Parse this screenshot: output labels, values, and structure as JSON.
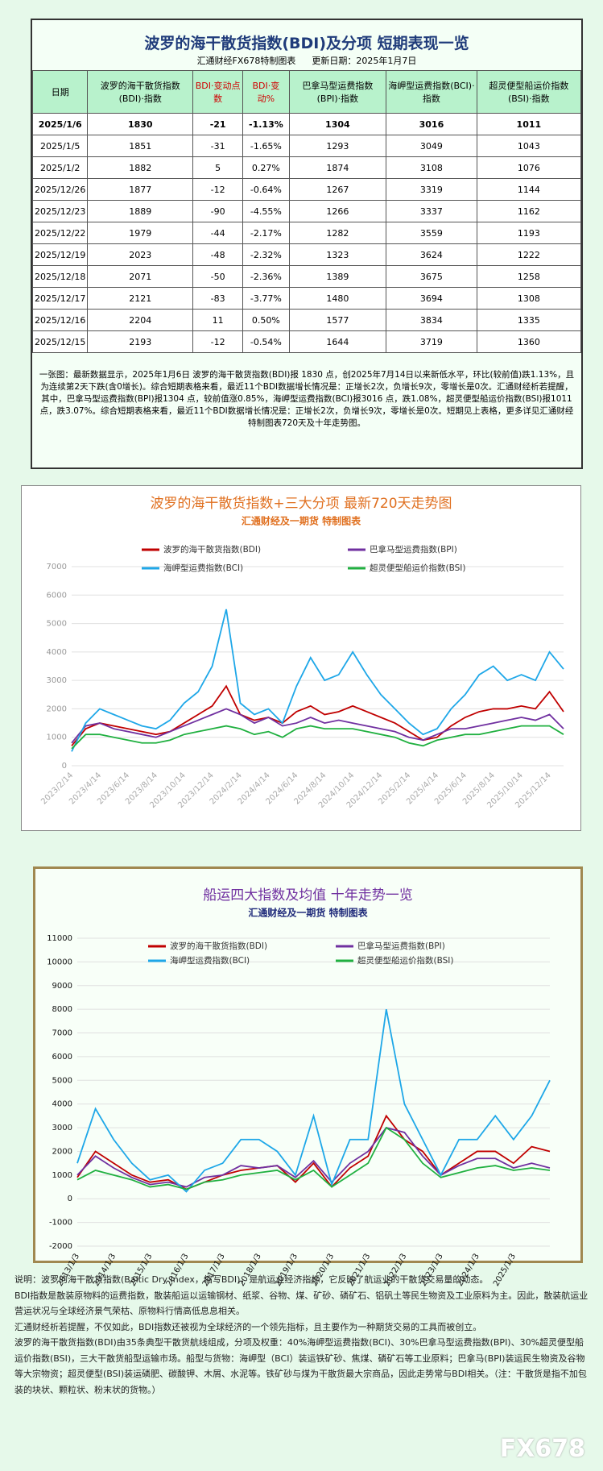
{
  "header": {
    "title": "波罗的海干散货指数(BDI)及分项  短期表现一览",
    "subtitle": "汇通财经FX678特制图表",
    "updated": "更新日期：2025年1月7日"
  },
  "table": {
    "header": [
      "日期",
      "波罗的海干散货指数(BDI)·指数",
      "BDI·变动点数",
      "BDI·变动%",
      "巴拿马型运费指数(BPI)·指数",
      "海岬型运费指数(BCI)·指数",
      "超灵便型船运价指数(BSI)·指数"
    ],
    "rows": [
      [
        "2025/1/6",
        "1830",
        "-21",
        "-1.13%",
        "1304",
        "3016",
        "1011"
      ],
      [
        "2025/1/5",
        "1851",
        "-31",
        "-1.65%",
        "1293",
        "3049",
        "1043"
      ],
      [
        "2025/1/2",
        "1882",
        "5",
        "0.27%",
        "1874",
        "3108",
        "1076"
      ],
      [
        "2025/12/26",
        "1877",
        "-12",
        "-0.64%",
        "1267",
        "3319",
        "1144"
      ],
      [
        "2025/12/23",
        "1889",
        "-90",
        "-4.55%",
        "1266",
        "3337",
        "1162"
      ],
      [
        "2025/12/22",
        "1979",
        "-44",
        "-2.17%",
        "1282",
        "3559",
        "1193"
      ],
      [
        "2025/12/19",
        "2023",
        "-48",
        "-2.32%",
        "1323",
        "3624",
        "1222"
      ],
      [
        "2025/12/18",
        "2071",
        "-50",
        "-2.36%",
        "1389",
        "3675",
        "1258"
      ],
      [
        "2025/12/17",
        "2121",
        "-83",
        "-3.77%",
        "1480",
        "3694",
        "1308"
      ],
      [
        "2025/12/16",
        "2204",
        "11",
        "0.50%",
        "1577",
        "3834",
        "1335"
      ],
      [
        "2025/12/15",
        "2193",
        "-12",
        "-0.54%",
        "1644",
        "3719",
        "1360"
      ]
    ]
  },
  "summary": "一张图：最新数据显示，2025年1月6日 波罗的海干散货指数(BDI)报 1830 点，创2025年7月14日以来新低水平，环比(较前值)跌1.13%，且为连续第2天下跌(含0增长)。综合短期表格来看，最近11个BDI数据增长情况是：正增长2次，负增长9次，零增长是0次。汇通财经析若提醒，其中，巴拿马型运费指数(BPI)报1304 点，较前值涨0.85%，海岬型运费指数(BCI)报3016 点，跌1.08%，超灵便型船运价指数(BSI)报1011 点，跌3.07%。综合短期表格来看，最近11个BDI数据增长情况是：正增长2次，负增长9次，零增长是0次。短期见上表格，更多详见汇通财经特制图表720天及十年走势图。",
  "chart_data": [
    {
      "type": "line",
      "title": "波罗的海干散货指数+三大分项  最新720天走势图",
      "subtitle": "汇通财经及一期货  特制图表",
      "categories": [
        "2023/2/14",
        null,
        "2023/4/14",
        null,
        "2023/6/14",
        null,
        "2023/8/14",
        null,
        "2023/10/14",
        null,
        "2023/12/14",
        null,
        "2024/2/14",
        null,
        "2024/4/14",
        null,
        "2024/6/14",
        null,
        "2024/8/14",
        null,
        "2024/10/14",
        null,
        "2024/12/14",
        null,
        "2025/2/14",
        null,
        "2025/4/14",
        null,
        "2025/6/14",
        null,
        "2025/8/14",
        null,
        "2025/10/14",
        null,
        "2025/12/14",
        null
      ],
      "series": [
        {
          "name": "波罗的海干散货指数(BDI)",
          "color": "#c00000",
          "values": [
            700,
            1300,
            1500,
            1400,
            1300,
            1200,
            1100,
            1200,
            1500,
            1800,
            2100,
            2800,
            1800,
            1600,
            1700,
            1500,
            1900,
            2100,
            1800,
            1900,
            2100,
            1900,
            1700,
            1500,
            1200,
            900,
            1000,
            1400,
            1700,
            1900,
            2000,
            2000,
            2100,
            2000,
            2600,
            1900
          ]
        },
        {
          "name": "巴拿马型运费指数(BPI)",
          "color": "#7030a0",
          "values": [
            800,
            1400,
            1500,
            1300,
            1200,
            1100,
            1000,
            1200,
            1400,
            1600,
            1800,
            2000,
            1800,
            1500,
            1700,
            1400,
            1500,
            1700,
            1500,
            1600,
            1500,
            1400,
            1300,
            1200,
            1000,
            900,
            1100,
            1300,
            1300,
            1400,
            1500,
            1600,
            1700,
            1600,
            1800,
            1300
          ]
        },
        {
          "name": "海岬型运费指数(BCI)",
          "color": "#1ea7e8",
          "values": [
            500,
            1500,
            2000,
            1800,
            1600,
            1400,
            1300,
            1600,
            2200,
            2600,
            3500,
            5500,
            2200,
            1800,
            2000,
            1500,
            2800,
            3800,
            3000,
            3200,
            4000,
            3200,
            2500,
            2000,
            1500,
            1100,
            1300,
            2000,
            2500,
            3200,
            3500,
            3000,
            3200,
            3000,
            4000,
            3400
          ]
        },
        {
          "name": "超灵便型船运价指数(BSI)",
          "color": "#20b040",
          "values": [
            600,
            1100,
            1100,
            1000,
            900,
            800,
            800,
            900,
            1100,
            1200,
            1300,
            1400,
            1300,
            1100,
            1200,
            1000,
            1300,
            1400,
            1300,
            1300,
            1300,
            1200,
            1100,
            1000,
            800,
            700,
            900,
            1000,
            1100,
            1100,
            1200,
            1300,
            1400,
            1400,
            1400,
            1100
          ]
        }
      ],
      "ylim": [
        0,
        7000
      ],
      "yticks": [
        0,
        1000,
        2000,
        3000,
        4000,
        5000,
        6000,
        7000
      ],
      "grid": true
    },
    {
      "type": "line",
      "title": "船运四大指数及均值 十年走势一览",
      "subtitle": "汇通财经及一期货 特制图表",
      "categories": [
        "2013/1/3",
        null,
        "2014/1/3",
        null,
        "2015/1/3",
        null,
        "2016/1/3",
        null,
        "2017/1/3",
        null,
        "2018/1/3",
        null,
        "2019/1/3",
        null,
        "2020/1/3",
        null,
        "2021/1/3",
        null,
        "2022/1/3",
        null,
        "2023/1/3",
        null,
        "2024/1/3",
        null,
        "2025/1/3",
        null,
        null
      ],
      "series": [
        {
          "name": "波罗的海干散货指数(BDI)",
          "color": "#c00000",
          "values": [
            900,
            2000,
            1500,
            1000,
            700,
            800,
            400,
            700,
            1000,
            1200,
            1300,
            1400,
            700,
            1500,
            500,
            1300,
            1800,
            3500,
            2500,
            2000,
            1000,
            1500,
            2000,
            2000,
            1500,
            2200,
            2000
          ]
        },
        {
          "name": "巴拿马型运费指数(BPI)",
          "color": "#7030a0",
          "values": [
            1000,
            1800,
            1300,
            900,
            600,
            700,
            500,
            900,
            1000,
            1400,
            1300,
            1400,
            900,
            1600,
            700,
            1500,
            2000,
            3000,
            2800,
            1800,
            1000,
            1400,
            1700,
            1700,
            1300,
            1500,
            1300
          ]
        },
        {
          "name": "海岬型运费指数(BCI)",
          "color": "#1ea7e8",
          "values": [
            1500,
            3800,
            2500,
            1500,
            800,
            1000,
            300,
            1200,
            1500,
            2500,
            2500,
            2000,
            1000,
            3500,
            600,
            2500,
            2500,
            8000,
            4000,
            2500,
            1000,
            2500,
            2500,
            3500,
            2500,
            3500,
            5000
          ]
        },
        {
          "name": "超灵便型船运价指数(BSI)",
          "color": "#20b040",
          "values": [
            800,
            1200,
            1000,
            800,
            500,
            600,
            400,
            700,
            800,
            1000,
            1100,
            1200,
            800,
            1200,
            500,
            1000,
            1500,
            3000,
            2500,
            1500,
            900,
            1100,
            1300,
            1400,
            1200,
            1300,
            1200
          ]
        }
      ],
      "ylim": [
        -2000,
        11000
      ],
      "yticks": [
        -2000,
        -1000,
        0,
        1000,
        2000,
        3000,
        4000,
        5000,
        6000,
        7000,
        8000,
        9000,
        10000,
        11000
      ],
      "grid": true
    }
  ],
  "notes": [
    "说明：波罗的海干散货指数(Baltic Dry Index，缩写BDI)，是航运业经济指标，它反映了航运业的干散货交易量的动态。",
    "BDI指数是散装原物料的运费指数，散装船运以运输钢材、纸浆、谷物、煤、矿砂、磷矿石、铝矾土等民生物资及工业原料为主。因此，散装航运业营运状况与全球经济景气荣枯、原物料行情高低息息相关。",
    "汇通财经析若提醒，不仅如此，BDI指数还被视为全球经济的一个领先指标，且主要作为一种期货交易的工具而被创立。",
    "波罗的海干散货指数(BDI)由35条典型干散货航线组成，分项及权重：40%海岬型运费指数(BCI)、30%巴拿马型运费指数(BPI)、30%超灵便型船运价指数(BSI)，三大干散货船型运输市场。船型与货物：海岬型（BCI）装运铁矿砂、焦煤、磷矿石等工业原料；巴拿马(BPI)装运民生物资及谷物等大宗物资；超灵便型(BSI)装运磷肥、碳酸钾、木屑、水泥等。铁矿砂与煤为干散货最大宗商品，因此走势常与BDI相关。（注：干散货是指不加包装的块状、颗粒状、粉末状的货物。）"
  ],
  "watermark": "FX678"
}
